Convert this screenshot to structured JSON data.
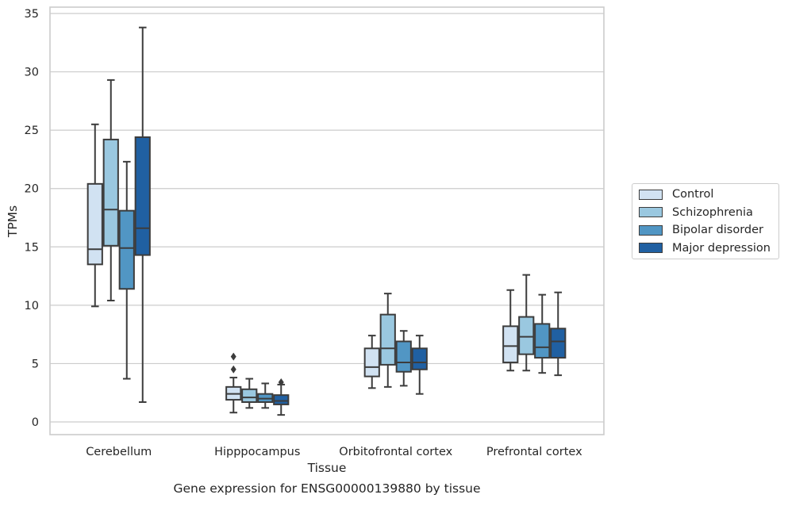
{
  "chart_data": {
    "type": "boxplot",
    "title": "",
    "caption": "Gene expression for ENSG00000139880 by tissue",
    "xlabel": "Tissue",
    "ylabel": "TPMs",
    "ylim": [
      -1,
      35.5
    ],
    "yticks": [
      0,
      5,
      10,
      15,
      20,
      25,
      30,
      35
    ],
    "grid": "horizontal",
    "legend_position": "right",
    "categories": [
      "Cerebellum",
      "Hipppocampus",
      "Orbitofrontal cortex",
      "Prefrontal cortex"
    ],
    "series": [
      {
        "name": "Control",
        "color": "#d1e2f2",
        "boxes": [
          {
            "whislo": 9.9,
            "q1": 13.5,
            "med": 14.8,
            "q3": 20.4,
            "whishi": 25.5,
            "fliers": []
          },
          {
            "whislo": 0.8,
            "q1": 1.9,
            "med": 2.4,
            "q3": 3.0,
            "whishi": 3.8,
            "fliers": [
              4.5,
              5.6
            ]
          },
          {
            "whislo": 2.9,
            "q1": 3.9,
            "med": 4.7,
            "q3": 6.3,
            "whishi": 7.4,
            "fliers": []
          },
          {
            "whislo": 4.4,
            "q1": 5.1,
            "med": 6.5,
            "q3": 8.2,
            "whishi": 11.3,
            "fliers": []
          }
        ]
      },
      {
        "name": "Schizophrenia",
        "color": "#9ac8e0",
        "boxes": [
          {
            "whislo": 10.4,
            "q1": 15.1,
            "med": 18.2,
            "q3": 24.2,
            "whishi": 29.3,
            "fliers": []
          },
          {
            "whislo": 1.2,
            "q1": 1.7,
            "med": 2.1,
            "q3": 2.8,
            "whishi": 3.7,
            "fliers": []
          },
          {
            "whislo": 3.0,
            "q1": 4.9,
            "med": 6.3,
            "q3": 9.2,
            "whishi": 11.0,
            "fliers": []
          },
          {
            "whislo": 4.4,
            "q1": 5.8,
            "med": 7.3,
            "q3": 9.0,
            "whishi": 12.6,
            "fliers": []
          }
        ]
      },
      {
        "name": "Bipolar disorder",
        "color": "#5196c4",
        "boxes": [
          {
            "whislo": 3.7,
            "q1": 11.4,
            "med": 14.9,
            "q3": 18.1,
            "whishi": 22.3,
            "fliers": []
          },
          {
            "whislo": 1.2,
            "q1": 1.7,
            "med": 2.0,
            "q3": 2.4,
            "whishi": 3.3,
            "fliers": []
          },
          {
            "whislo": 3.1,
            "q1": 4.3,
            "med": 5.1,
            "q3": 6.9,
            "whishi": 7.8,
            "fliers": []
          },
          {
            "whislo": 4.2,
            "q1": 5.5,
            "med": 6.4,
            "q3": 8.4,
            "whishi": 10.9,
            "fliers": []
          }
        ]
      },
      {
        "name": "Major depression",
        "color": "#2060a2",
        "boxes": [
          {
            "whislo": 1.7,
            "q1": 14.3,
            "med": 16.6,
            "q3": 24.4,
            "whishi": 33.8,
            "fliers": []
          },
          {
            "whislo": 0.6,
            "q1": 1.5,
            "med": 1.8,
            "q3": 2.3,
            "whishi": 3.2,
            "fliers": [
              3.4
            ]
          },
          {
            "whislo": 2.4,
            "q1": 4.5,
            "med": 5.1,
            "q3": 6.3,
            "whishi": 7.4,
            "fliers": []
          },
          {
            "whislo": 4.0,
            "q1": 5.5,
            "med": 6.9,
            "q3": 8.0,
            "whishi": 11.1,
            "fliers": []
          }
        ]
      }
    ]
  }
}
